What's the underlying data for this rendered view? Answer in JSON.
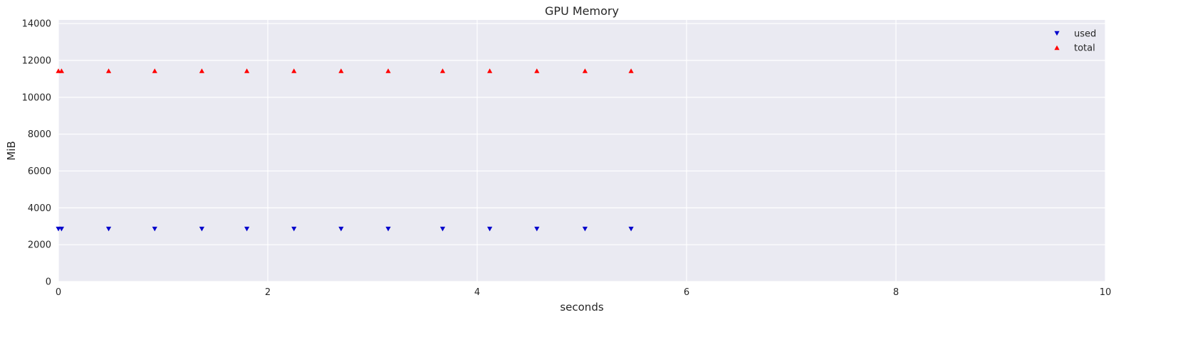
{
  "chart_data": {
    "type": "scatter",
    "title": "GPU Memory",
    "xlabel": "seconds",
    "ylabel": "MiB",
    "xlim": [
      0,
      10
    ],
    "ylim": [
      0,
      14200
    ],
    "xticks": [
      0,
      2,
      4,
      6,
      8,
      10
    ],
    "xtick_labels": [
      "0",
      "2",
      "4",
      "6",
      "8",
      "10"
    ],
    "yticks": [
      0,
      2000,
      4000,
      6000,
      8000,
      10000,
      12000,
      14000
    ],
    "ytick_labels": [
      "0",
      "2000",
      "4000",
      "6000",
      "8000",
      "10000",
      "12000",
      "14000"
    ],
    "grid": true,
    "legend_position": "top-right",
    "series": [
      {
        "name": "used",
        "marker": "triangle-down",
        "color": "#0000cc",
        "x": [
          0.0,
          0.03,
          0.48,
          0.92,
          1.37,
          1.8,
          2.25,
          2.7,
          3.15,
          3.67,
          4.12,
          4.57,
          5.03,
          5.47
        ],
        "y": [
          2850,
          2850,
          2850,
          2850,
          2850,
          2850,
          2850,
          2850,
          2850,
          2850,
          2850,
          2850,
          2850,
          2850
        ]
      },
      {
        "name": "total",
        "marker": "triangle-up",
        "color": "#ff0000",
        "x": [
          0.0,
          0.03,
          0.48,
          0.92,
          1.37,
          1.8,
          2.25,
          2.7,
          3.15,
          3.67,
          4.12,
          4.57,
          5.03,
          5.47
        ],
        "y": [
          11440,
          11440,
          11440,
          11440,
          11440,
          11440,
          11440,
          11440,
          11440,
          11440,
          11440,
          11440,
          11440,
          11440
        ]
      }
    ]
  }
}
